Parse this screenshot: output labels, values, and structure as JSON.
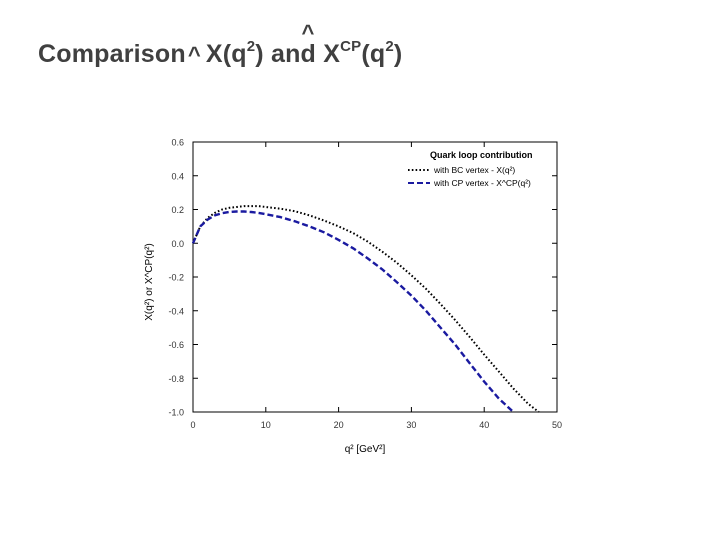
{
  "slide": {
    "title_word": "Comparison",
    "hat": "^",
    "x": "X(q",
    "sq": "2",
    "close": ")",
    "and_an": "an",
    "and_d": "d",
    "xcp_x": "X",
    "cp": "CP",
    "xcp_q": "(q"
  },
  "chart_data": {
    "type": "line",
    "title": "",
    "xlabel": "q² [GeV²]",
    "ylabel": "X(q²) or X^CP(q²)",
    "xlim": [
      0,
      50
    ],
    "ylim": [
      -1.0,
      0.6
    ],
    "x_ticks": [
      0,
      10,
      20,
      30,
      40,
      50
    ],
    "y_ticks": [
      0.6,
      0.4,
      0.2,
      0.0,
      -0.2,
      -0.4,
      -0.6,
      -0.8,
      -1.0
    ],
    "legend_title": "Quark loop contribution",
    "legend_placement": "top-right",
    "grid": false,
    "series": [
      {
        "name": "with BC vertex - X(q²)",
        "color": "#000000",
        "style": "dotted",
        "x": [
          0,
          1,
          2,
          3,
          4,
          5,
          6,
          7,
          8,
          9,
          10,
          12,
          14,
          16,
          18,
          20,
          22,
          24,
          26,
          28,
          30,
          32,
          34,
          36,
          38,
          40,
          42,
          44,
          46,
          47.5
        ],
        "y": [
          0.0,
          0.1,
          0.15,
          0.18,
          0.2,
          0.21,
          0.215,
          0.22,
          0.22,
          0.22,
          0.215,
          0.205,
          0.19,
          0.165,
          0.135,
          0.1,
          0.06,
          0.01,
          -0.05,
          -0.115,
          -0.19,
          -0.27,
          -0.36,
          -0.455,
          -0.555,
          -0.66,
          -0.76,
          -0.86,
          -0.95,
          -1.0
        ]
      },
      {
        "name": "with CP vertex - X^CP(q²)",
        "color": "#1a1aa0",
        "style": "dashed",
        "x": [
          0,
          1,
          2,
          3,
          4,
          5,
          6,
          7,
          8,
          9,
          10,
          12,
          14,
          16,
          18,
          20,
          22,
          24,
          26,
          28,
          30,
          32,
          34,
          36,
          38,
          40,
          42,
          44
        ],
        "y": [
          0.0,
          0.1,
          0.14,
          0.165,
          0.178,
          0.185,
          0.188,
          0.188,
          0.185,
          0.18,
          0.172,
          0.155,
          0.13,
          0.1,
          0.065,
          0.02,
          -0.03,
          -0.09,
          -0.155,
          -0.23,
          -0.31,
          -0.4,
          -0.5,
          -0.6,
          -0.71,
          -0.82,
          -0.92,
          -1.0
        ]
      }
    ]
  }
}
